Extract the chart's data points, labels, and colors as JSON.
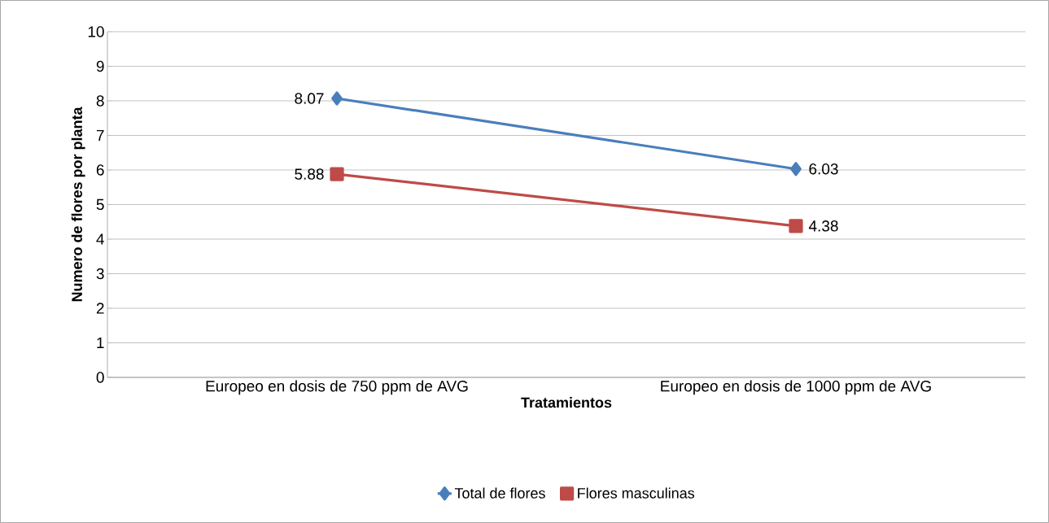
{
  "chart_data": {
    "type": "line",
    "xlabel": "Tratamientos",
    "ylabel": "Numero de flores por planta",
    "categories": [
      "Europeo en dosis de 750 ppm de AVG",
      "Europeo en dosis de 1000 ppm de AVG"
    ],
    "series": [
      {
        "name": "Total de flores",
        "color": "#4a7ebb",
        "marker": "diamond",
        "values": [
          8.07,
          6.03
        ]
      },
      {
        "name": "Flores masculinas",
        "color": "#be4b48",
        "marker": "square",
        "values": [
          5.88,
          4.38
        ]
      }
    ],
    "ylim": [
      0,
      10
    ],
    "yticks": [
      0,
      1,
      2,
      3,
      4,
      5,
      6,
      7,
      8,
      9,
      10
    ],
    "grid": "y",
    "legend": "bottom",
    "data_labels": true
  }
}
